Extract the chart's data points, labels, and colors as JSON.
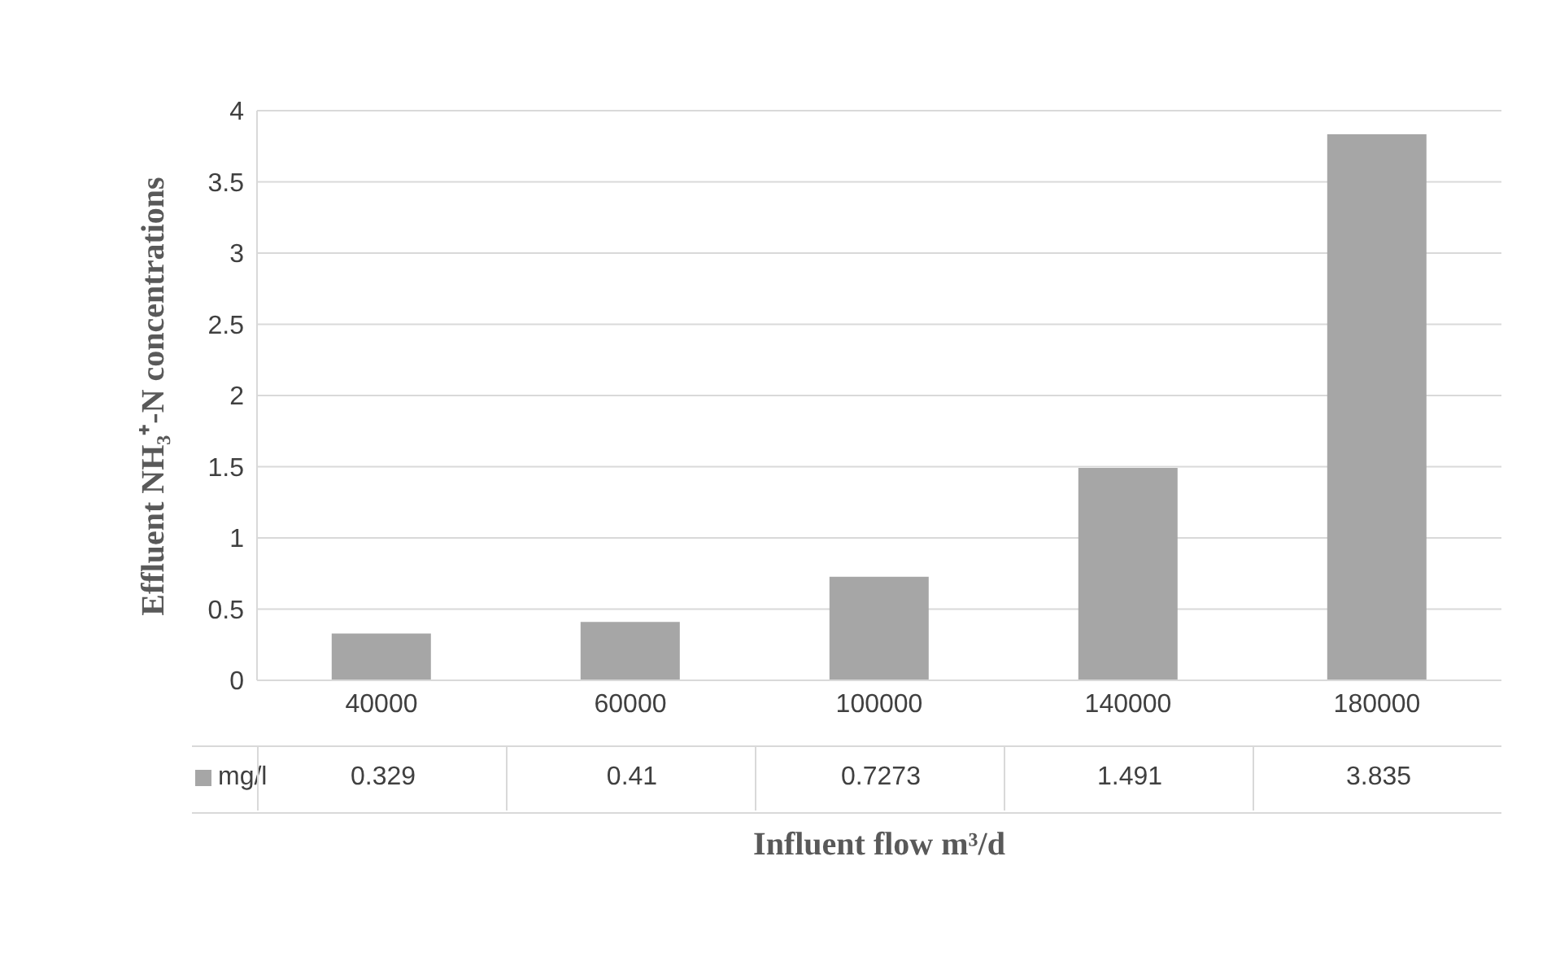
{
  "chart_data": {
    "type": "bar",
    "xlabel": "Influent flow m³/d",
    "ylabel": "Effluent NH₃⁺-N concentrations",
    "categories": [
      "40000",
      "60000",
      "100000",
      "140000",
      "180000"
    ],
    "series": [
      {
        "name": "mg/l",
        "color": "#a6a6a6",
        "values": [
          0.329,
          0.41,
          0.7273,
          1.491,
          3.835
        ]
      }
    ],
    "ylim": [
      0,
      4
    ],
    "yticks": [
      0,
      0.5,
      1,
      1.5,
      2,
      2.5,
      3,
      3.5,
      4
    ],
    "grid": "y",
    "legend": "bottom",
    "data_labels": true
  }
}
